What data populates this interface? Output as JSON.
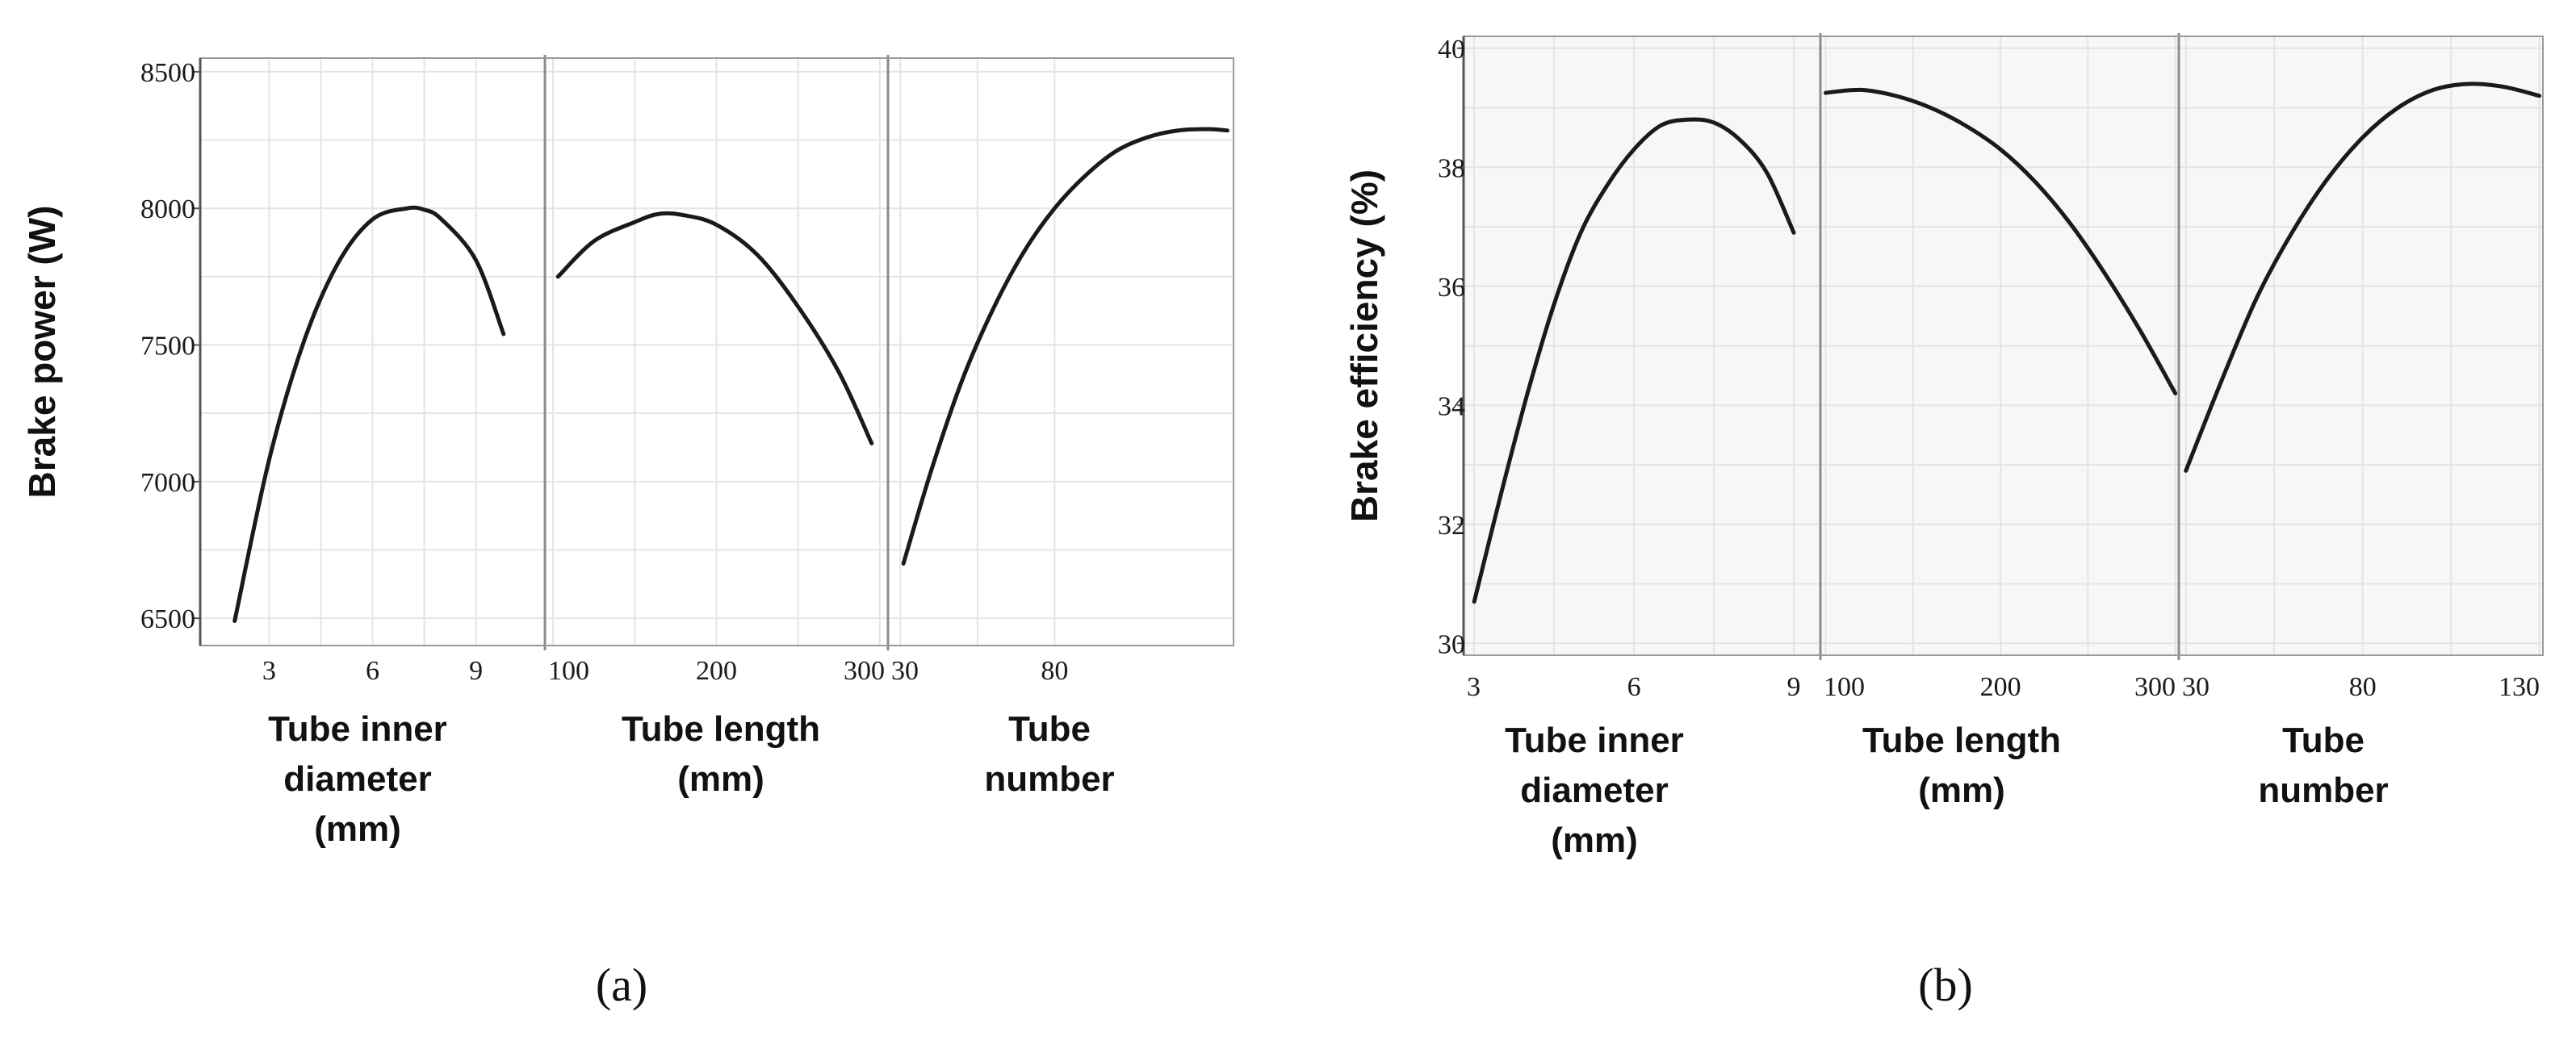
{
  "chart_data": [
    {
      "type": "line",
      "panel_label": "(a)",
      "ylabel": "Brake power (W)",
      "ylim": [
        6400,
        8550
      ],
      "yticks": [
        "6500",
        "7000",
        "7500",
        "8000",
        "8500"
      ],
      "grid": true,
      "line_color": "#1a1a1a",
      "panels": [
        {
          "xlabel": "Tube inner diameter (mm)",
          "xlabel_lines": [
            "Tube inner",
            "diameter",
            "(mm)"
          ],
          "xlim": [
            1,
            11
          ],
          "xticks": [
            "3",
            "6",
            "9"
          ],
          "series": [
            {
              "x": [
                2,
                3,
                4,
                5,
                6,
                7,
                7.5,
                8,
                9,
                9.8
              ],
              "y": [
                6490,
                7080,
                7510,
                7800,
                7960,
                8000,
                7995,
                7960,
                7810,
                7540
              ]
            }
          ]
        },
        {
          "xlabel": "Tube length (mm)",
          "xlabel_lines": [
            "Tube length",
            "(mm)"
          ],
          "xlim": [
            95,
            305
          ],
          "xticks": [
            "100",
            "200",
            "300"
          ],
          "series": [
            {
              "x": [
                103,
                125,
                150,
                165,
                180,
                200,
                225,
                250,
                275,
                295
              ],
              "y": [
                7750,
                7880,
                7950,
                7980,
                7975,
                7940,
                7830,
                7640,
                7400,
                7140
              ]
            }
          ]
        },
        {
          "xlabel": "Tube number",
          "xlabel_lines": [
            "Tube",
            "number"
          ],
          "xlim": [
            26,
            138
          ],
          "xticks": [
            "30",
            "80"
          ],
          "series": [
            {
              "x": [
                31,
                40,
                50,
                60,
                70,
                80,
                90,
                100,
                110,
                120,
                130,
                136
              ],
              "y": [
                6700,
                7040,
                7370,
                7630,
                7840,
                8000,
                8120,
                8210,
                8260,
                8285,
                8290,
                8285
              ]
            }
          ]
        }
      ]
    },
    {
      "type": "line",
      "panel_label": "(b)",
      "ylabel": "Brake efficiency (%)",
      "ylim": [
        29.8,
        40.2
      ],
      "yticks": [
        "30",
        "32",
        "34",
        "36",
        "38",
        "40"
      ],
      "grid": true,
      "line_color": "#1a1a1a",
      "panels": [
        {
          "xlabel": "Tube inner diameter (mm)",
          "xlabel_lines": [
            "Tube inner",
            "diameter",
            "(mm)"
          ],
          "xlim": [
            2.8,
            9.5
          ],
          "xticks": [
            "3",
            "6",
            "9"
          ],
          "series": [
            {
              "x": [
                3,
                3.5,
                4,
                4.5,
                5,
                5.5,
                6,
                6.5,
                7,
                7.5,
                8,
                8.5,
                9
              ],
              "y": [
                30.7,
                32.5,
                34.2,
                35.7,
                36.9,
                37.7,
                38.3,
                38.7,
                38.8,
                38.75,
                38.45,
                37.9,
                36.9
              ]
            }
          ]
        },
        {
          "xlabel": "Tube length (mm)",
          "xlabel_lines": [
            "Tube length",
            "(mm)"
          ],
          "xlim": [
            97,
            302
          ],
          "xticks": [
            "100",
            "200",
            "300"
          ],
          "series": [
            {
              "x": [
                100,
                120,
                140,
                160,
                180,
                200,
                220,
                240,
                260,
                280,
                300
              ],
              "y": [
                39.25,
                39.3,
                39.2,
                39.0,
                38.7,
                38.3,
                37.75,
                37.05,
                36.2,
                35.25,
                34.2
              ]
            }
          ]
        },
        {
          "xlabel": "Tube number",
          "xlabel_lines": [
            "Tube",
            "number"
          ],
          "xlim": [
            28,
            131
          ],
          "xticks": [
            "30",
            "80",
            "130"
          ],
          "series": [
            {
              "x": [
                30,
                40,
                50,
                60,
                70,
                80,
                90,
                100,
                110,
                120,
                130
              ],
              "y": [
                32.9,
                34.4,
                35.8,
                36.9,
                37.8,
                38.5,
                39.0,
                39.3,
                39.4,
                39.35,
                39.2
              ]
            }
          ]
        }
      ]
    }
  ]
}
